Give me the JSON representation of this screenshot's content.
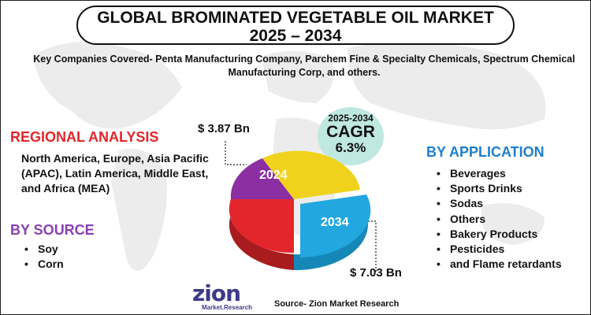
{
  "title": {
    "line1": "GLOBAL BROMINATED VEGETABLE OIL MARKET",
    "line2": "2025 – 2034"
  },
  "companies": "Key Companies Covered- Penta Manufacturing Company, Parchem Fine & Specialty Chemicals, Spectrum Chemical Manufacturing Corp, and others.",
  "regional": {
    "heading": "REGIONAL ANALYSIS",
    "text": "North America, Europe, Asia Pacific (APAC), Latin America, Middle East, and Africa (MEA)"
  },
  "source_segment": {
    "heading": "BY SOURCE",
    "items": [
      "Soy",
      "Corn"
    ]
  },
  "application": {
    "heading": "BY APPLICATION",
    "items": [
      "Beverages",
      "Sports Drinks",
      "Sodas",
      "Others",
      "Bakery Products",
      "Pesticides",
      "and Flame retardants"
    ]
  },
  "cagr": {
    "period": "2025-2034",
    "label": "CAGR",
    "value": "6.3%"
  },
  "chart_data": {
    "type": "pie",
    "categories": [
      "2024",
      "2034"
    ],
    "values": [
      3.87,
      7.03
    ],
    "value_labels": [
      "$ 3.87 Bn",
      "$ 7.03 Bn"
    ],
    "colors": [
      "#e3262b",
      "#f0d21c",
      "#22a7e0",
      "#8b2fa3"
    ]
  },
  "footer": {
    "source": "Source- Zion Market Research",
    "logo_text": "zion",
    "logo_sub": "Market.Research"
  },
  "colors": {
    "red": "#e3262b",
    "purple": "#8a3fb5",
    "blue": "#1c7fcf",
    "cagr_bg": "#bfe8e0"
  }
}
